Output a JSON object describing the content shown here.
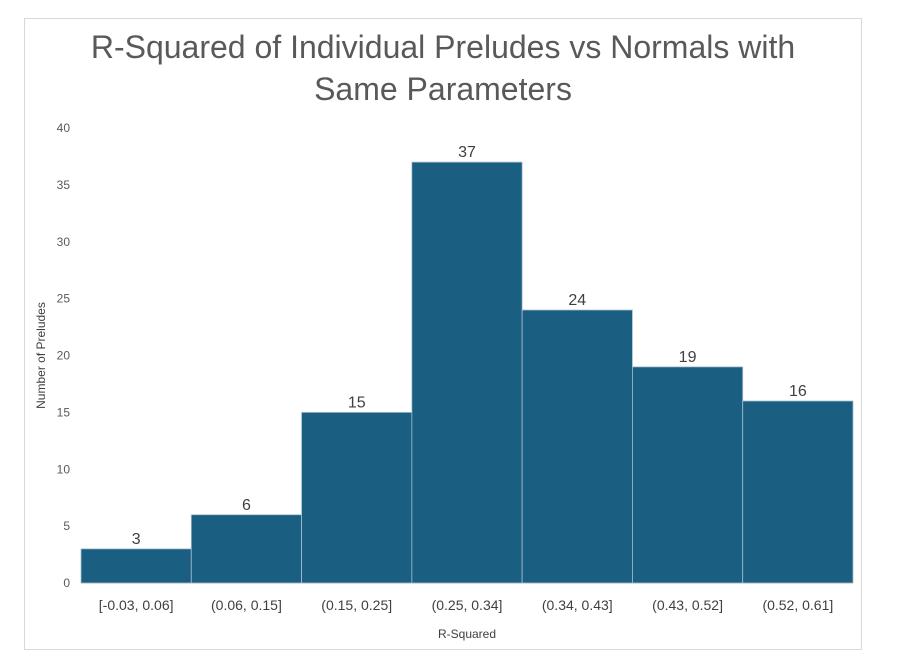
{
  "chart_data": {
    "type": "bar",
    "title_lines": [
      "R-Squared of Individual Preludes vs Normals with",
      "Same Parameters"
    ],
    "xlabel": "R-Squared",
    "ylabel": "Number of Preludes",
    "categories": [
      "[-0.03, 0.06]",
      "(0.06, 0.15]",
      "(0.15, 0.25]",
      "(0.25, 0.34]",
      "(0.34, 0.43]",
      "(0.43, 0.52]",
      "(0.52, 0.61]"
    ],
    "values": [
      3,
      6,
      15,
      37,
      24,
      19,
      16
    ],
    "ylim": [
      0,
      40
    ],
    "yticks": [
      0,
      5,
      10,
      15,
      20,
      25,
      30,
      35,
      40
    ],
    "grid": false,
    "bar_color": "#1a5e82",
    "bar_edge_color": "#a6bfcf"
  }
}
